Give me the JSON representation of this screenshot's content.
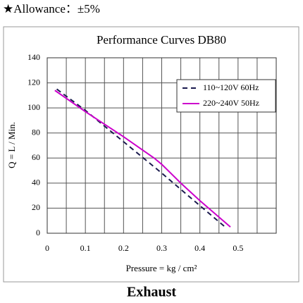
{
  "header": "★Allowance：±5%",
  "chart_data": {
    "type": "line",
    "title": "Performance  Curves  DB80",
    "x_label": "Pressure = kg / cm²",
    "y_label": "Q = L / Min.",
    "xlim": [
      0,
      0.6
    ],
    "ylim": [
      0,
      140
    ],
    "xticks": [
      0,
      0.1,
      0.2,
      0.3,
      0.4,
      0.5
    ],
    "yticks": [
      0,
      20,
      40,
      60,
      80,
      100,
      120,
      140
    ],
    "x_grid": [
      0,
      0.05,
      0.1,
      0.15,
      0.2,
      0.25,
      0.3,
      0.35,
      0.4,
      0.45,
      0.5,
      0.55,
      0.6
    ],
    "grid": true,
    "legend": "upper right",
    "series": [
      {
        "name": "110~120V 60Hz",
        "color": "#1a1a4e",
        "dashed": true,
        "x": [
          0.025,
          0.1,
          0.2,
          0.3,
          0.4,
          0.47
        ],
        "values": [
          115,
          98,
          73,
          48,
          22,
          4
        ]
      },
      {
        "name": "220~240V 50Hz",
        "color": "#cc00cc",
        "dashed": false,
        "x": [
          0.02,
          0.1,
          0.2,
          0.28,
          0.3,
          0.35,
          0.4,
          0.48
        ],
        "values": [
          114,
          97,
          77,
          60,
          55,
          40,
          26,
          5
        ]
      }
    ]
  },
  "footer": "Exhaust"
}
